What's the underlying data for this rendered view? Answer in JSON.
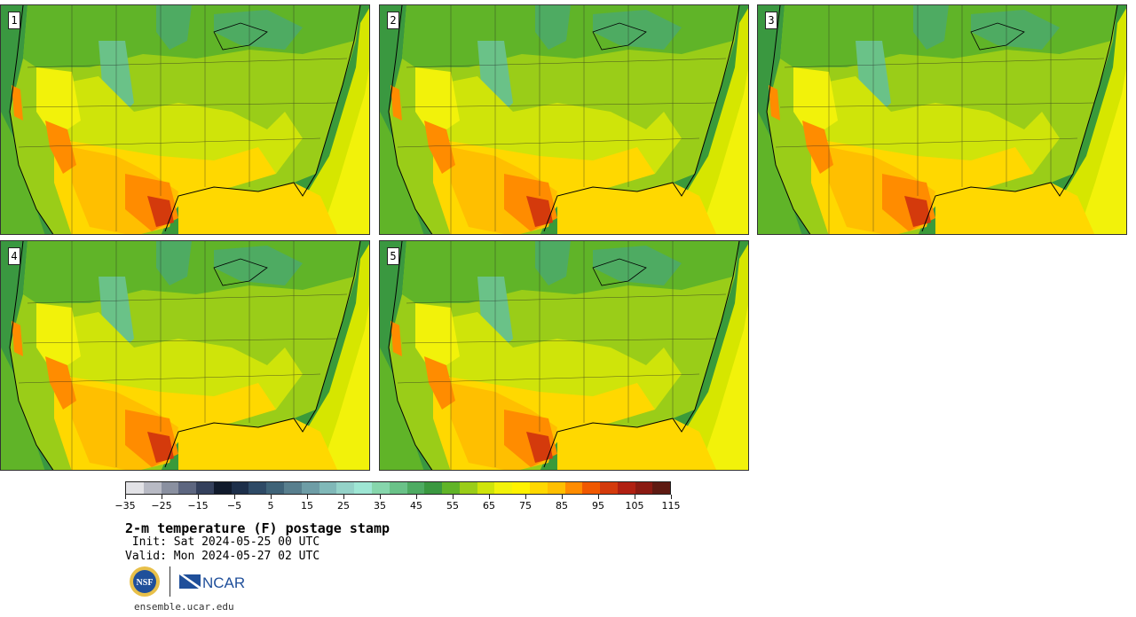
{
  "panels": [
    {
      "label": "1"
    },
    {
      "label": "2"
    },
    {
      "label": "3"
    },
    {
      "label": "4"
    },
    {
      "label": "5"
    }
  ],
  "colorbar": {
    "colors": [
      "#e2e2e6",
      "#b8bac4",
      "#8a90a0",
      "#5d6680",
      "#34405c",
      "#101a2c",
      "#1d2f4a",
      "#2e4a66",
      "#3f6378",
      "#587f8e",
      "#6e9da6",
      "#80b8b8",
      "#94d2c8",
      "#9ee6d4",
      "#86d6ac",
      "#6ac288",
      "#4eab62",
      "#3a9840",
      "#60b428",
      "#9acd18",
      "#cfe40a",
      "#f2f20a",
      "#fff200",
      "#ffd800",
      "#ffbf00",
      "#ff8c00",
      "#f05800",
      "#d43a0c",
      "#b02012",
      "#8a1a12",
      "#5e1a12"
    ],
    "tick_labels": [
      "−35",
      "−25",
      "−15",
      "−5",
      "5",
      "15",
      "25",
      "35",
      "45",
      "55",
      "65",
      "75",
      "85",
      "95",
      "105",
      "115"
    ]
  },
  "title": "2-m temperature (F) postage stamp",
  "init_line": " Init: Sat 2024-05-25 00 UTC",
  "valid_line": "Valid: Mon 2024-05-27 02 UTC",
  "logos": {
    "nsf": "NSF",
    "ncar": "NCAR"
  },
  "footer": "ensemble.ucar.edu"
}
